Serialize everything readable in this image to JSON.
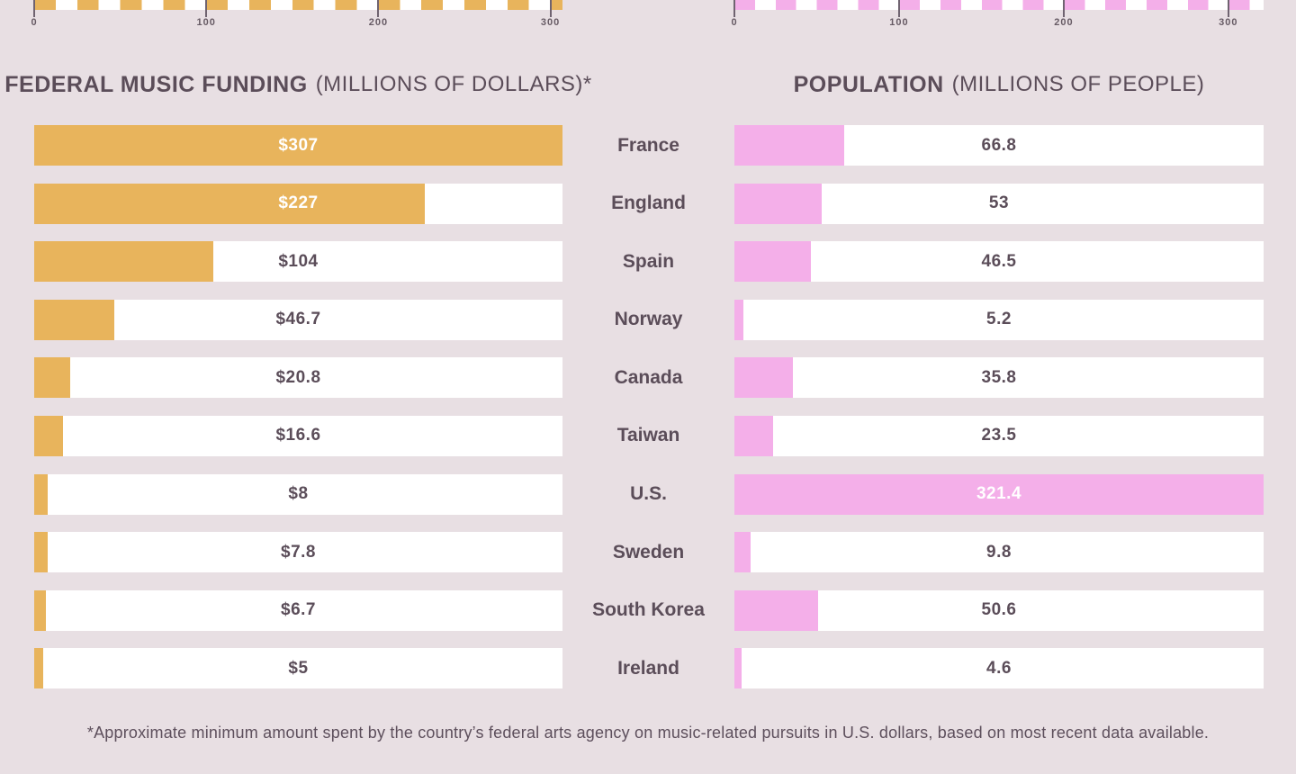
{
  "titles": {
    "left_bold": "FEDERAL MUSIC FUNDING",
    "left_light": "(MILLIONS OF DOLLARS)*",
    "right_bold": "POPULATION",
    "right_light": "(MILLIONS OF PEOPLE)"
  },
  "footnote": "*Approximate minimum amount spent by the country’s federal arts agency on music-related pursuits in U.S. dollars, based on most recent data available.",
  "colors": {
    "background": "#e8dfe3",
    "funding_bar": "#e8b45c",
    "population_bar": "#f4afe9",
    "bar_track": "#ffffff",
    "text_dark": "#5b4d59",
    "text_on_bar": "#ffffff",
    "axis_tick": "#6f6370"
  },
  "chart_data": {
    "type": "bar",
    "orientation": "horizontal",
    "grid": false,
    "legend": false,
    "categories": [
      "France",
      "England",
      "Spain",
      "Norway",
      "Canada",
      "Taiwan",
      "U.S.",
      "Sweden",
      "South Korea",
      "Ireland"
    ],
    "series": [
      {
        "name": "Federal Music Funding (Millions of Dollars)",
        "side": "left",
        "color": "#e8b45c",
        "axis_max": 307,
        "axis_ticks": [
          0,
          100,
          200,
          300
        ],
        "values": [
          307,
          227,
          104,
          46.7,
          20.8,
          16.6,
          8,
          7.8,
          6.7,
          5
        ],
        "labels": [
          "$307",
          "$227",
          "$104",
          "$46.7",
          "$20.8",
          "$16.6",
          "$8",
          "$7.8",
          "$6.7",
          "$5"
        ]
      },
      {
        "name": "Population (Millions of People)",
        "side": "right",
        "color": "#f4afe9",
        "axis_max": 321.4,
        "axis_ticks": [
          0,
          100,
          200,
          300
        ],
        "values": [
          66.8,
          53,
          46.5,
          5.2,
          35.8,
          23.5,
          321.4,
          9.8,
          50.6,
          4.6
        ],
        "labels": [
          "66.8",
          "53",
          "46.5",
          "5.2",
          "35.8",
          "23.5",
          "321.4",
          "9.8",
          "50.6",
          "4.6"
        ]
      }
    ]
  }
}
